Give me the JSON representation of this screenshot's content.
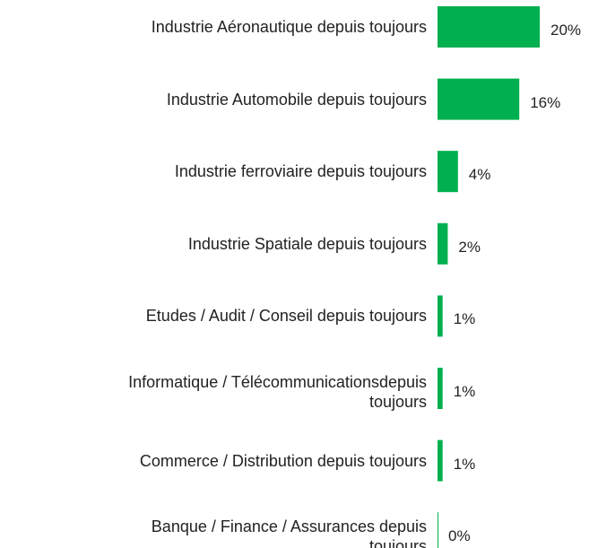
{
  "chart_data": {
    "type": "bar",
    "orientation": "horizontal",
    "categories": [
      "Industrie Aéronautique depuis toujours",
      "Industrie Automobile depuis toujours",
      "Industrie ferroviaire depuis toujours",
      "Industrie Spatiale depuis toujours",
      "Etudes / Audit / Conseil depuis toujours",
      "Informatique / Télécommunicationsdepuis toujours",
      "Commerce / Distribution depuis toujours",
      "Banque / Finance / Assurances depuis toujours"
    ],
    "values": [
      20,
      16,
      4,
      2,
      1,
      1,
      1,
      0
    ],
    "value_labels": [
      "20%",
      "16%",
      "4%",
      "2%",
      "1%",
      "1%",
      "1%",
      "0%"
    ],
    "color": "#00b050"
  }
}
